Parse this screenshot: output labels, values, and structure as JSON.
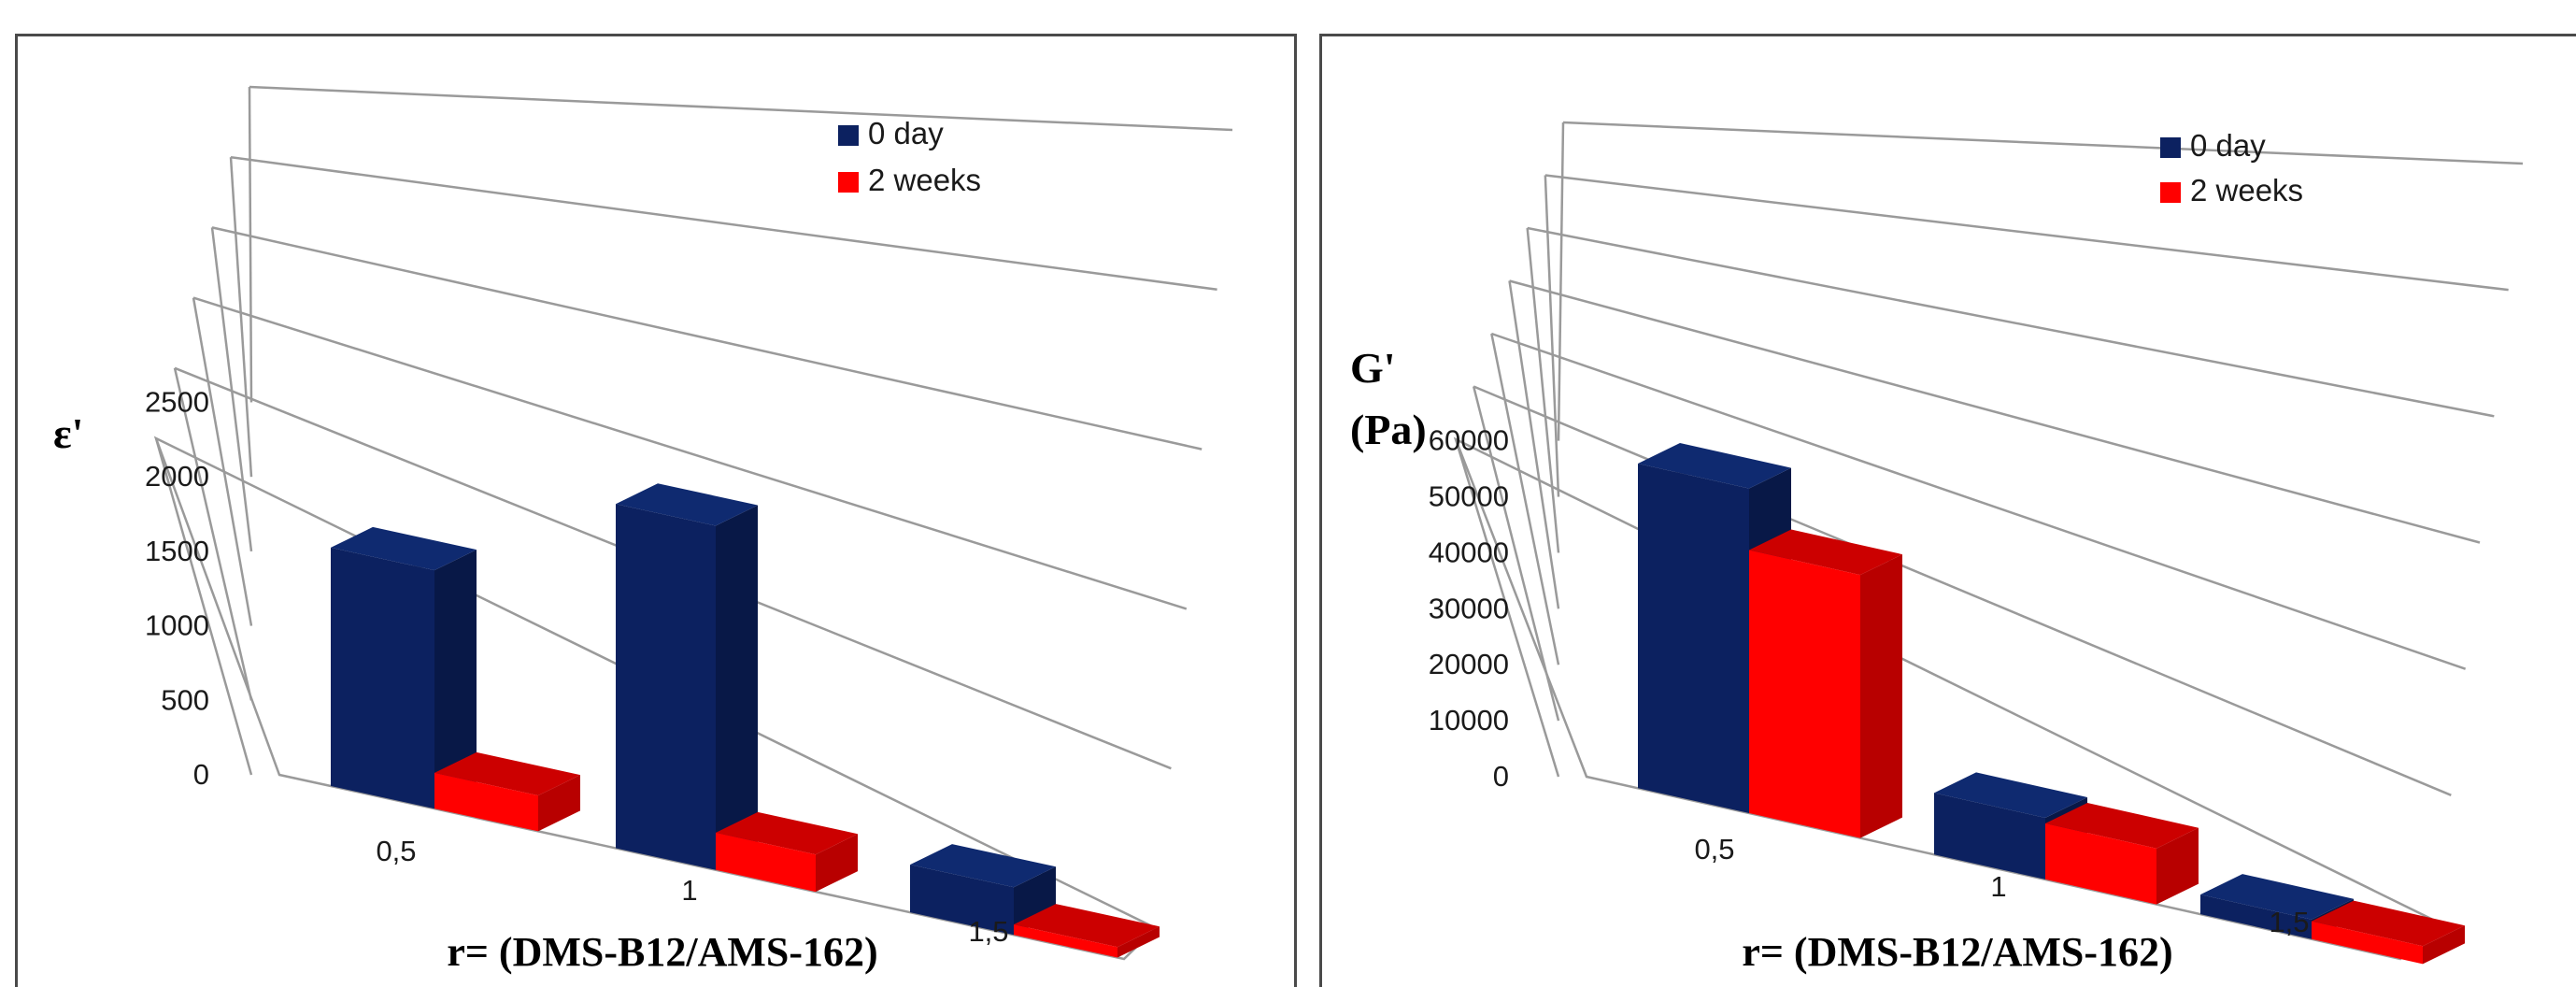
{
  "colors": {
    "series_0_front": "#0c2160",
    "series_0_side": "#081847",
    "series_0_top": "#0f2a70",
    "series_1_front": "#ff0000",
    "series_1_side": "#b80000",
    "series_1_top": "#cc0000",
    "grid": "#9a9a9a",
    "frame": "#4a4a4a"
  },
  "chart_data": [
    {
      "type": "bar",
      "projection": "3d-perspective",
      "ylabel": "ε'",
      "xlabel": "r= (DMS-B12/AMS-162)",
      "categories": [
        "0,5",
        "1",
        "1,5"
      ],
      "ylim": [
        0,
        2500
      ],
      "yticks": [
        "0",
        "500",
        "1000",
        "1500",
        "2000",
        "2500"
      ],
      "legend_position": "top-right",
      "grid": true,
      "series": [
        {
          "name": "0 day",
          "values": [
            1600,
            2310,
            320
          ]
        },
        {
          "name": "2 weeks",
          "values": [
            240,
            250,
            70
          ]
        }
      ]
    },
    {
      "type": "bar",
      "projection": "3d-perspective",
      "ylabel": "G' (Pa)",
      "ylabel_lines": [
        "G'",
        "(Pa)"
      ],
      "xlabel": "r= (DMS-B12/AMS-162)",
      "categories": [
        "0,5",
        "1",
        "1,5"
      ],
      "ylim": [
        0,
        60000
      ],
      "yticks": [
        "0",
        "10000",
        "20000",
        "30000",
        "40000",
        "50000",
        "60000"
      ],
      "legend_position": "top-right",
      "grid": true,
      "series": [
        {
          "name": "0 day",
          "values": [
            58000,
            11000,
            3500
          ]
        },
        {
          "name": "2 weeks",
          "values": [
            47000,
            10000,
            3200
          ]
        }
      ]
    }
  ]
}
